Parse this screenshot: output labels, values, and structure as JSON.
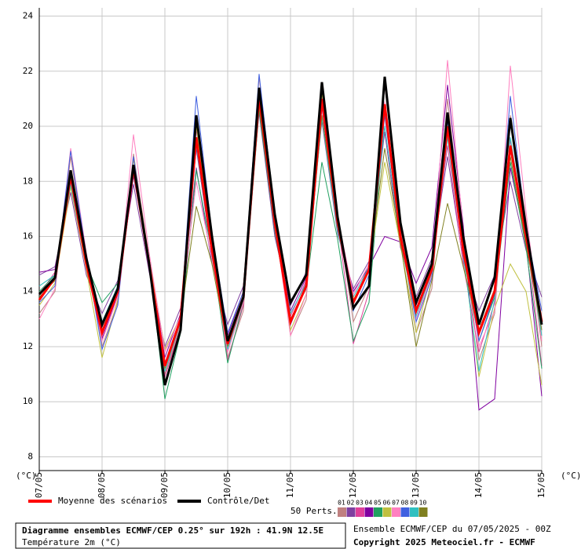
{
  "chart_data": {
    "type": "line",
    "title": "Diagramme ensembles ECMWF/CEP 0.25° sur 192h : 41.9N 12.5E",
    "subtitle": "Température 2m (°C)",
    "run_label": "Ensemble ECMWF/CEP du 07/05/2025 - 00Z",
    "copyright": "Copyright 2025 Meteociel.fr - ECMWF",
    "y_unit": "(°C)",
    "perturbation_label": "50 Perts.",
    "grid": true,
    "xlim": [
      0,
      192
    ],
    "xticks": [
      {
        "value": 0,
        "label": "07/05"
      },
      {
        "value": 24,
        "label": "08/05"
      },
      {
        "value": 48,
        "label": "09/05"
      },
      {
        "value": 72,
        "label": "10/05"
      },
      {
        "value": 96,
        "label": "11/05"
      },
      {
        "value": 120,
        "label": "12/05"
      },
      {
        "value": 144,
        "label": "13/05"
      },
      {
        "value": 168,
        "label": "14/05"
      },
      {
        "value": 192,
        "label": "15/05"
      }
    ],
    "ylim": [
      7.5,
      24.3
    ],
    "yticks": [
      8,
      10,
      12,
      14,
      16,
      18,
      20,
      22,
      24
    ],
    "x": [
      0,
      6,
      12,
      18,
      24,
      30,
      36,
      42,
      48,
      54,
      60,
      66,
      72,
      78,
      84,
      90,
      96,
      102,
      108,
      114,
      120,
      126,
      132,
      138,
      144,
      150,
      156,
      162,
      168,
      174,
      180,
      186,
      192
    ],
    "perturbations": [
      {
        "name": "01",
        "color": "#c08080",
        "values": [
          13.2,
          14.0,
          18.9,
          15.3,
          12.0,
          13.6,
          19.0,
          15.2,
          11.0,
          12.8,
          20.2,
          15.8,
          11.6,
          13.3,
          21.8,
          16.9,
          12.4,
          13.7,
          21.6,
          16.8,
          12.9,
          14.2,
          21.5,
          16.3,
          12.5,
          14.1,
          21.0,
          15.9,
          11.5,
          13.2,
          20.4,
          16.6,
          12.0
        ]
      },
      {
        "name": "02",
        "color": "#8040a0",
        "values": [
          14.6,
          14.9,
          17.6,
          14.6,
          13.2,
          14.4,
          17.9,
          14.7,
          12.0,
          13.4,
          18.5,
          15.0,
          12.8,
          14.2,
          20.5,
          16.0,
          13.5,
          14.7,
          20.2,
          16.1,
          14.1,
          15.1,
          19.8,
          15.6,
          13.8,
          15.2,
          18.9,
          15.1,
          13.3,
          14.6,
          18.0,
          15.5,
          13.8
        ]
      },
      {
        "name": "03",
        "color": "#e0409a",
        "values": [
          13.9,
          14.7,
          18.3,
          15.1,
          12.7,
          14.2,
          18.4,
          14.9,
          10.9,
          12.7,
          19.9,
          15.7,
          11.5,
          13.5,
          21.2,
          16.7,
          13.1,
          14.4,
          20.9,
          16.6,
          12.1,
          14.0,
          20.6,
          15.8,
          13.5,
          15.0,
          19.3,
          15.0,
          11.8,
          13.6,
          19.5,
          16.2,
          11.3
        ]
      },
      {
        "name": "04",
        "color": "#8000a0",
        "values": [
          14.7,
          14.8,
          18.0,
          14.9,
          12.3,
          13.9,
          18.2,
          15.1,
          11.6,
          13.2,
          19.2,
          15.3,
          12.4,
          14.0,
          20.9,
          16.3,
          13.3,
          14.5,
          20.7,
          16.3,
          14.0,
          14.9,
          16.0,
          15.8,
          14.3,
          15.6,
          21.5,
          16.4,
          9.7,
          10.1,
          18.5,
          15.8,
          10.2
        ]
      },
      {
        "name": "05",
        "color": "#20a060",
        "values": [
          14.0,
          14.6,
          18.1,
          15.0,
          13.6,
          14.3,
          18.6,
          15.1,
          10.1,
          12.5,
          18.4,
          15.4,
          11.4,
          13.6,
          20.6,
          16.2,
          13.0,
          14.1,
          18.7,
          15.9,
          12.2,
          13.6,
          20.5,
          16.0,
          13.4,
          14.6,
          19.8,
          15.4,
          12.2,
          13.8,
          18.7,
          15.6,
          11.2
        ]
      },
      {
        "name": "06",
        "color": "#c0c040",
        "values": [
          13.5,
          14.3,
          17.8,
          14.8,
          11.6,
          13.7,
          18.8,
          15.2,
          11.9,
          13.1,
          20.0,
          15.6,
          12.3,
          13.9,
          21.3,
          16.6,
          12.6,
          13.9,
          21.2,
          16.7,
          13.7,
          14.8,
          18.7,
          15.7,
          12.5,
          14.7,
          19.9,
          15.4,
          10.9,
          13.4,
          15.0,
          14.0,
          10.6
        ]
      },
      {
        "name": "07",
        "color": "#ff80c0",
        "values": [
          13.0,
          14.1,
          19.2,
          15.4,
          12.2,
          13.8,
          19.7,
          15.4,
          11.8,
          13.1,
          18.0,
          15.2,
          11.8,
          13.6,
          21.0,
          16.5,
          12.4,
          13.9,
          21.5,
          16.7,
          13.9,
          15.0,
          20.9,
          16.1,
          13.0,
          14.6,
          22.4,
          16.2,
          12.0,
          13.3,
          22.2,
          16.9,
          12.2
        ]
      },
      {
        "name": "08",
        "color": "#4060e0",
        "values": [
          13.6,
          14.2,
          19.1,
          15.3,
          11.9,
          13.5,
          18.9,
          15.0,
          11.4,
          13.0,
          21.1,
          16.1,
          12.5,
          14.0,
          21.9,
          16.8,
          12.8,
          14.2,
          21.0,
          16.5,
          13.3,
          14.6,
          20.4,
          16.0,
          12.9,
          14.5,
          20.2,
          15.6,
          12.2,
          13.9,
          21.1,
          16.3,
          13.3
        ]
      },
      {
        "name": "09",
        "color": "#30c0c0",
        "values": [
          14.2,
          14.6,
          17.9,
          14.9,
          12.9,
          14.2,
          18.3,
          15.0,
          11.1,
          12.9,
          19.3,
          15.3,
          11.9,
          13.7,
          20.8,
          16.3,
          13.2,
          14.3,
          20.3,
          16.2,
          13.8,
          14.9,
          20.0,
          15.8,
          13.1,
          14.7,
          19.6,
          15.3,
          11.1,
          13.7,
          19.6,
          16.0,
          12.4
        ]
      },
      {
        "name": "10",
        "color": "#808020",
        "values": [
          13.8,
          14.4,
          18.4,
          15.0,
          12.6,
          14.1,
          18.3,
          15.0,
          11.2,
          13.0,
          17.1,
          15.0,
          12.0,
          13.8,
          20.7,
          16.4,
          12.9,
          14.2,
          20.4,
          16.4,
          13.6,
          14.8,
          19.2,
          15.8,
          12.0,
          14.4,
          17.2,
          14.9,
          12.6,
          14.1,
          18.9,
          15.7,
          12.6
        ]
      }
    ],
    "series": [
      {
        "name": "Moyenne des scénarios",
        "color": "#ff0000",
        "values": [
          13.7,
          14.5,
          18.2,
          15.0,
          12.5,
          14.0,
          18.5,
          15.0,
          11.3,
          13.0,
          19.6,
          15.5,
          12.1,
          13.8,
          21.1,
          16.5,
          12.9,
          14.2,
          21.0,
          16.5,
          13.6,
          14.8,
          20.8,
          16.0,
          13.3,
          14.8,
          20.0,
          15.5,
          12.5,
          14.0,
          19.3,
          16.0,
          12.9
        ]
      },
      {
        "name": "Contrôle/Det",
        "color": "#000000",
        "values": [
          13.9,
          14.5,
          18.4,
          15.2,
          12.8,
          14.1,
          18.6,
          15.0,
          10.6,
          12.6,
          20.4,
          16.0,
          12.2,
          13.8,
          21.4,
          16.8,
          13.6,
          14.6,
          21.6,
          16.7,
          13.4,
          14.2,
          21.8,
          16.5,
          13.6,
          15.0,
          20.5,
          16.0,
          12.8,
          14.5,
          20.3,
          16.3,
          12.8
        ]
      }
    ]
  }
}
